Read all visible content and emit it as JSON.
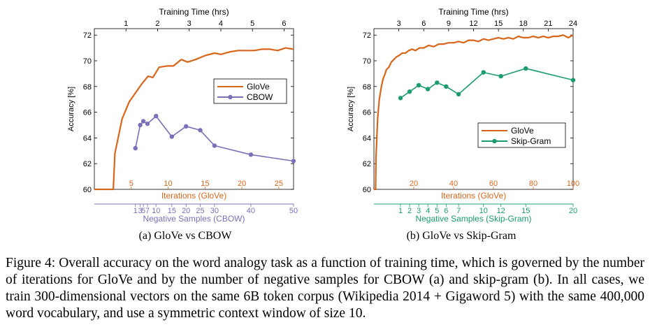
{
  "figure_caption": "Figure 4: Overall accuracy on the word analogy task as a function of training time, which is governed by the number of iterations for GloVe and by the number of negative samples for CBOW (a) and skip-gram (b). In all cases, we train 300-dimensional vectors on the same 6B token corpus (Wikipedia 2014 + Gigaword 5) with the same 400,000 word vocabulary, and use a symmetric context window of size 10.",
  "colors": {
    "glove": "#d9651b",
    "cbow": "#7b6fb8",
    "skipgram": "#1a9c6e",
    "axis": "#000000"
  },
  "chart_data": [
    {
      "type": "line",
      "subcaption": "(a) GloVe vs CBOW",
      "ylabel": "Accuracy [%]",
      "ylim": [
        60,
        72.5
      ],
      "yticks": [
        60,
        62,
        64,
        66,
        68,
        70,
        72
      ],
      "grid": false,
      "legend_position": "right-middle",
      "top_axis": {
        "label": "Training Time (hrs)",
        "xlim": [
          0,
          6.3
        ],
        "ticks": [
          1,
          2,
          3,
          4,
          5,
          6
        ]
      },
      "iter_axis": {
        "label": "Iterations (GloVe)",
        "xlim": [
          0,
          27
        ],
        "ticks": [
          5,
          10,
          15,
          20,
          25
        ]
      },
      "neg_axis": {
        "label": "Negative Samples (CBOW)",
        "ticks": [
          {
            "label": "1",
            "t": 1.3
          },
          {
            "label": "3",
            "t": 1.45
          },
          {
            "label": "5",
            "t": 1.55
          },
          {
            "label": "7",
            "t": 1.68
          },
          {
            "label": "10",
            "t": 1.95
          },
          {
            "label": "15",
            "t": 2.45
          },
          {
            "label": "20",
            "t": 2.9
          },
          {
            "label": "25",
            "t": 3.35
          },
          {
            "label": "30",
            "t": 3.8
          },
          {
            "label": "40",
            "t": 4.95
          },
          {
            "label": "50",
            "t": 6.3
          }
        ]
      },
      "series": [
        {
          "name": "GloVe",
          "color": "#d9651b",
          "marker": "none",
          "points": [
            [
              0,
              60
            ],
            [
              0.6,
              60
            ],
            [
              0.65,
              62.8
            ],
            [
              0.88,
              65.5
            ],
            [
              1.1,
              66.8
            ],
            [
              1.3,
              67.5
            ],
            [
              1.5,
              68.2
            ],
            [
              1.7,
              68.8
            ],
            [
              1.85,
              68.7
            ],
            [
              2.05,
              69.5
            ],
            [
              2.3,
              69.6
            ],
            [
              2.5,
              69.6
            ],
            [
              2.75,
              70.1
            ],
            [
              2.95,
              69.9
            ],
            [
              3.2,
              70.1
            ],
            [
              3.5,
              70.4
            ],
            [
              3.8,
              70.6
            ],
            [
              4.0,
              70.5
            ],
            [
              4.3,
              70.7
            ],
            [
              4.55,
              70.8
            ],
            [
              4.8,
              70.8
            ],
            [
              5.05,
              70.8
            ],
            [
              5.3,
              70.9
            ],
            [
              5.55,
              70.9
            ],
            [
              5.8,
              70.8
            ],
            [
              6.05,
              71.0
            ],
            [
              6.3,
              70.9
            ]
          ]
        },
        {
          "name": "CBOW",
          "color": "#7b6fb8",
          "marker": "circle",
          "points": [
            [
              1.3,
              63.2
            ],
            [
              1.45,
              65.0
            ],
            [
              1.55,
              65.3
            ],
            [
              1.68,
              65.1
            ],
            [
              1.95,
              65.7
            ],
            [
              2.45,
              64.1
            ],
            [
              2.9,
              64.9
            ],
            [
              3.35,
              64.6
            ],
            [
              3.8,
              63.4
            ],
            [
              4.95,
              62.7
            ],
            [
              6.3,
              62.2
            ]
          ]
        }
      ]
    },
    {
      "type": "line",
      "subcaption": "(b) GloVe vs Skip-Gram",
      "ylabel": "Accuracy [%]",
      "ylim": [
        60,
        72.5
      ],
      "yticks": [
        60,
        62,
        64,
        66,
        68,
        70,
        72
      ],
      "grid": false,
      "legend_position": "right-middle",
      "top_axis": {
        "label": "Training Time (hrs)",
        "xlim": [
          0,
          24
        ],
        "ticks": [
          3,
          6,
          9,
          12,
          15,
          18,
          21,
          24
        ]
      },
      "iter_axis": {
        "label": "Iterations (GloVe)",
        "xlim": [
          0,
          100
        ],
        "ticks": [
          20,
          40,
          60,
          80,
          100
        ]
      },
      "neg_axis": {
        "label": "Negative Samples (Skip-Gram)",
        "ticks": [
          {
            "label": "1",
            "t": 3.2
          },
          {
            "label": "2",
            "t": 4.3
          },
          {
            "label": "3",
            "t": 5.4
          },
          {
            "label": "4",
            "t": 6.5
          },
          {
            "label": "5",
            "t": 7.6
          },
          {
            "label": "6",
            "t": 8.7
          },
          {
            "label": "7",
            "t": 10.2
          },
          {
            "label": "10",
            "t": 13.2
          },
          {
            "label": "12",
            "t": 15.3
          },
          {
            "label": "15",
            "t": 18.3
          },
          {
            "label": "20",
            "t": 24
          }
        ]
      },
      "series": [
        {
          "name": "GloVe",
          "color": "#d9651b",
          "marker": "none",
          "points": [
            [
              0,
              60
            ],
            [
              0.2,
              60
            ],
            [
              0.25,
              62.5
            ],
            [
              0.45,
              65.5
            ],
            [
              0.65,
              67.0
            ],
            [
              0.9,
              68.0
            ],
            [
              1.1,
              68.6
            ],
            [
              1.3,
              68.9
            ],
            [
              1.5,
              69.3
            ],
            [
              1.8,
              69.5
            ],
            [
              2.1,
              69.9
            ],
            [
              2.4,
              70.1
            ],
            [
              2.7,
              70.3
            ],
            [
              3.0,
              70.4
            ],
            [
              3.4,
              70.6
            ],
            [
              3.8,
              70.6
            ],
            [
              4.2,
              70.8
            ],
            [
              4.6,
              70.9
            ],
            [
              5.0,
              70.8
            ],
            [
              5.5,
              71.0
            ],
            [
              6.0,
              71.0
            ],
            [
              6.6,
              71.2
            ],
            [
              7.2,
              71.1
            ],
            [
              7.8,
              71.3
            ],
            [
              8.4,
              71.3
            ],
            [
              9.0,
              71.4
            ],
            [
              9.6,
              71.4
            ],
            [
              10.2,
              71.5
            ],
            [
              10.8,
              71.4
            ],
            [
              11.4,
              71.6
            ],
            [
              12.0,
              71.6
            ],
            [
              12.6,
              71.5
            ],
            [
              13.2,
              71.7
            ],
            [
              13.8,
              71.6
            ],
            [
              14.4,
              71.7
            ],
            [
              15.0,
              71.8
            ],
            [
              15.6,
              71.7
            ],
            [
              16.2,
              71.8
            ],
            [
              16.8,
              71.7
            ],
            [
              17.4,
              71.9
            ],
            [
              18.0,
              71.8
            ],
            [
              18.6,
              71.8
            ],
            [
              19.2,
              71.9
            ],
            [
              19.8,
              71.8
            ],
            [
              20.4,
              71.9
            ],
            [
              21.0,
              71.8
            ],
            [
              21.6,
              71.9
            ],
            [
              22.2,
              71.9
            ],
            [
              22.8,
              72.0
            ],
            [
              23.4,
              71.8
            ],
            [
              24.0,
              72.0
            ]
          ]
        },
        {
          "name": "Skip-Gram",
          "color": "#1a9c6e",
          "marker": "circle",
          "points": [
            [
              3.2,
              67.1
            ],
            [
              4.3,
              67.6
            ],
            [
              5.4,
              68.1
            ],
            [
              6.5,
              67.8
            ],
            [
              7.6,
              68.3
            ],
            [
              8.7,
              68.0
            ],
            [
              10.2,
              67.4
            ],
            [
              13.2,
              69.1
            ],
            [
              15.3,
              68.8
            ],
            [
              18.3,
              69.4
            ],
            [
              24,
              68.5
            ]
          ]
        }
      ]
    }
  ]
}
